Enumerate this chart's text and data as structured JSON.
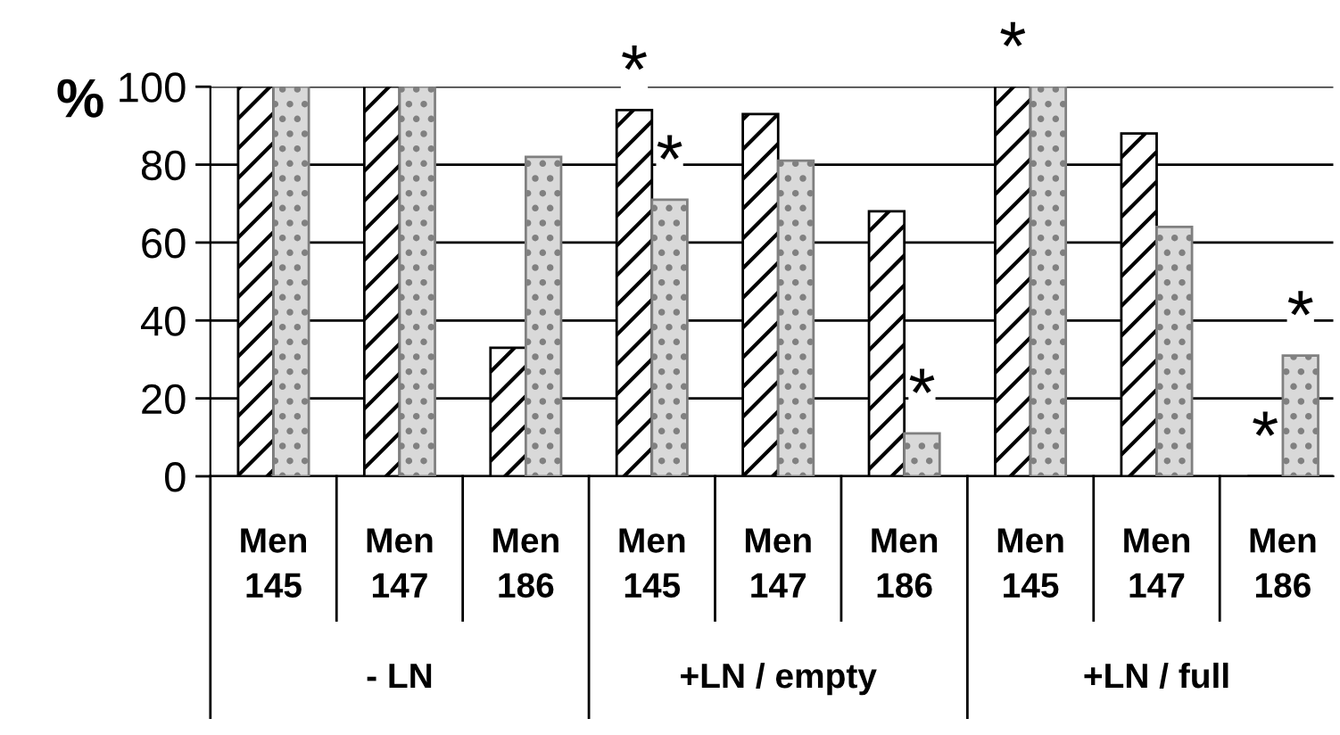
{
  "chart_data": {
    "type": "bar",
    "ylabel": "%",
    "categories": [
      "Men\n145",
      "Men\n147",
      "Men\n186",
      "Men\n145",
      "Men\n147",
      "Men\n186",
      "Men\n145",
      "Men\n147",
      "Men\n186"
    ],
    "series": [
      {
        "color": "#000000",
        "values": [
          100,
          100,
          33,
          94,
          93,
          68,
          100,
          88,
          0
        ],
        "value_labels": [
          null,
          null,
          null,
          "*",
          null,
          null,
          "*",
          null,
          "*"
        ]
      },
      {
        "color": "#808080",
        "values": [
          100,
          100,
          82,
          71,
          81,
          11,
          100,
          64,
          31
        ],
        "value_labels": [
          null,
          null,
          null,
          "*",
          null,
          "*",
          null,
          null,
          "*"
        ]
      }
    ],
    "ylim": [
      0,
      100
    ],
    "yticks": [
      0,
      20,
      40,
      60,
      80,
      100
    ],
    "grid": "y",
    "legend": false,
    "annotations": [
      "- LN",
      "+LN / empty",
      "+LN / full"
    ]
  }
}
